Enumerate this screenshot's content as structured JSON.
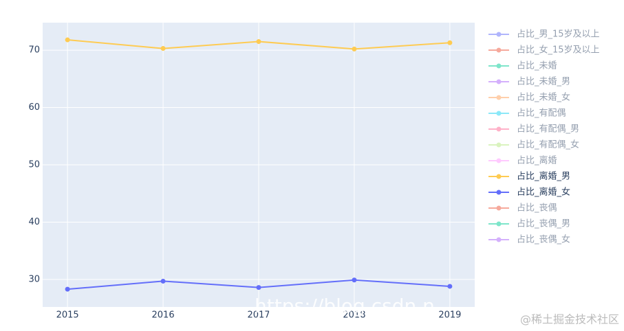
{
  "chart_data": {
    "type": "line",
    "x": [
      2015,
      2016,
      2017,
      2018,
      2019
    ],
    "xlim": [
      2014.74,
      2019.26
    ],
    "xticks": [
      2015,
      2016,
      2017,
      2018,
      2019
    ],
    "ylim": [
      25.2,
      74.8
    ],
    "yticks": [
      30,
      40,
      50,
      60,
      70
    ],
    "grid": true,
    "legend": "right",
    "series": [
      {
        "name": "占比_男_15岁及以上",
        "color": "#636efa",
        "visible": "legendonly"
      },
      {
        "name": "占比_女_15岁及以上",
        "color": "#EF553B",
        "visible": "legendonly"
      },
      {
        "name": "占比_未婚",
        "color": "#00cc96",
        "visible": "legendonly"
      },
      {
        "name": "占比_未婚_男",
        "color": "#ab63fa",
        "visible": "legendonly"
      },
      {
        "name": "占比_未婚_女",
        "color": "#FFA15A",
        "visible": "legendonly"
      },
      {
        "name": "占比_有配偶",
        "color": "#19d3f3",
        "visible": "legendonly"
      },
      {
        "name": "占比_有配偶_男",
        "color": "#FF6692",
        "visible": "legendonly"
      },
      {
        "name": "占比_有配偶_女",
        "color": "#B6E880",
        "visible": "legendonly"
      },
      {
        "name": "占比_离婚",
        "color": "#FF97FF",
        "visible": "legendonly"
      },
      {
        "name": "占比_离婚_男",
        "color": "#FECB52",
        "values": [
          71.8,
          70.3,
          71.5,
          70.2,
          71.3
        ]
      },
      {
        "name": "占比_离婚_女",
        "color": "#636efa",
        "values": [
          28.3,
          29.7,
          28.6,
          29.9,
          28.8
        ]
      },
      {
        "name": "占比_丧偶",
        "color": "#EF553B",
        "visible": "legendonly"
      },
      {
        "name": "占比_丧偶_男",
        "color": "#00cc96",
        "visible": "legendonly"
      },
      {
        "name": "占比_丧偶_女",
        "color": "#ab63fa",
        "visible": "legendonly"
      }
    ],
    "watermarks": [
      "https://blog.csdn.n",
      "@稀土掘金技术社区"
    ]
  }
}
